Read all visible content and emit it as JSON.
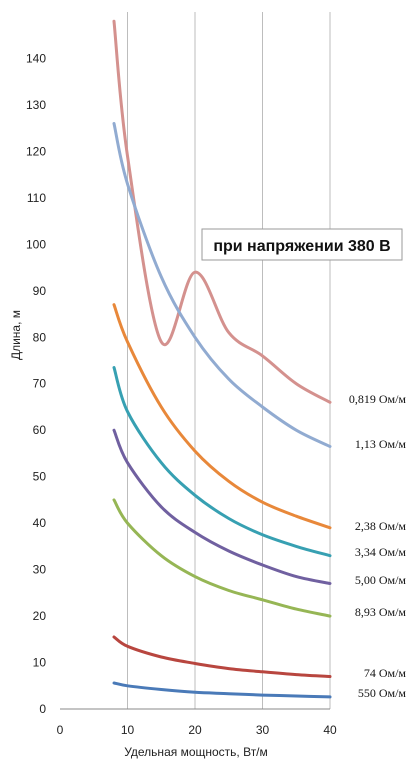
{
  "chart_data": {
    "type": "line",
    "xlabel": "Удельная мощность, Вт/м",
    "ylabel": "Длина, м",
    "xlim": [
      0,
      40
    ],
    "ylim": [
      0,
      150
    ],
    "x_ticks": [
      "0",
      "10",
      "20",
      "30",
      "40"
    ],
    "y_ticks": [
      "0",
      "10",
      "20",
      "30",
      "40",
      "50",
      "60",
      "70",
      "80",
      "90",
      "100",
      "110",
      "120",
      "130",
      "140"
    ],
    "grid": "vertical",
    "annotation": "при напряжении 380 В",
    "series": [
      {
        "name": "0,819 Ом/м",
        "color": "#d4918e",
        "x": [
          8,
          10,
          15,
          20,
          25,
          30,
          35,
          40
        ],
        "y": [
          148,
          119,
          79,
          94,
          81,
          76,
          70,
          66
        ]
      },
      {
        "name": "1,13 Ом/м",
        "color": "#91abd1",
        "x": [
          8,
          10,
          15,
          20,
          25,
          30,
          35,
          40
        ],
        "y": [
          126,
          113,
          93,
          80,
          71,
          65,
          60,
          56.5
        ]
      },
      {
        "name": "2,38 Ом/м",
        "color": "#e8883a",
        "x": [
          8,
          10,
          15,
          20,
          25,
          30,
          35,
          40
        ],
        "y": [
          87,
          79,
          65,
          55.5,
          49,
          44.5,
          41.5,
          39
        ]
      },
      {
        "name": "3,34 Ом/м",
        "color": "#37a0b2",
        "x": [
          8,
          10,
          15,
          20,
          25,
          30,
          35,
          40
        ],
        "y": [
          73.5,
          64,
          53,
          46,
          41,
          37.5,
          35,
          33
        ]
      },
      {
        "name": "5,00 Ом/м",
        "color": "#7060a0",
        "x": [
          8,
          10,
          15,
          20,
          25,
          30,
          35,
          40
        ],
        "y": [
          60,
          53,
          43.5,
          38,
          34,
          31,
          28.5,
          27
        ]
      },
      {
        "name": "8,93 Ом/м",
        "color": "#96b655",
        "x": [
          8,
          10,
          15,
          20,
          25,
          30,
          35,
          40
        ],
        "y": [
          45,
          40,
          33,
          28.5,
          25.5,
          23.5,
          21.5,
          20
        ]
      },
      {
        "name": "74 Ом/м",
        "color": "#b8463f",
        "x": [
          8,
          10,
          15,
          20,
          25,
          30,
          35,
          40
        ],
        "y": [
          15.5,
          13.5,
          11.2,
          9.8,
          8.7,
          8.0,
          7.4,
          7.0
        ]
      },
      {
        "name": "550 Ом/м",
        "color": "#4a7ab8",
        "x": [
          8,
          10,
          15,
          20,
          25,
          30,
          35,
          40
        ],
        "y": [
          5.6,
          5.0,
          4.2,
          3.6,
          3.3,
          3.0,
          2.8,
          2.6
        ]
      }
    ]
  }
}
